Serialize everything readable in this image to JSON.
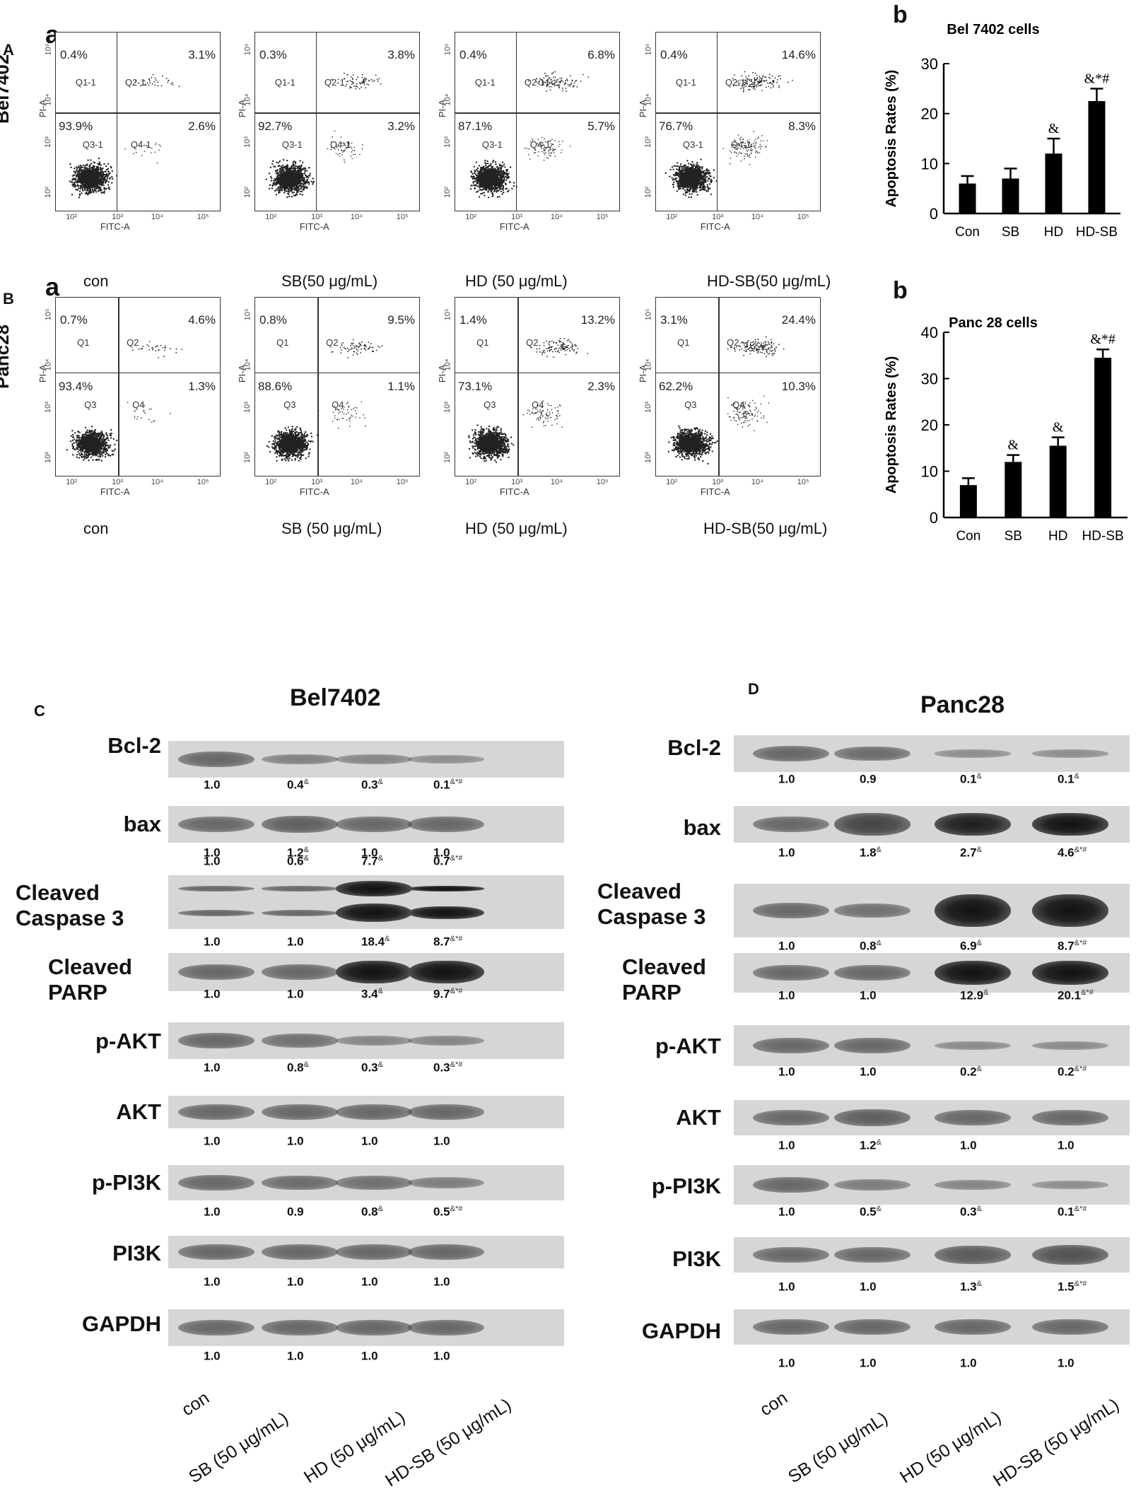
{
  "panel_letters": {
    "A": "A",
    "B": "B",
    "C": "C",
    "D": "D",
    "sub_a": "a",
    "sub_b": "b"
  },
  "flow": {
    "rows": [
      {
        "row_label": "Bel7402",
        "plots": [
          {
            "condition": "con",
            "q1": "0.4%",
            "q2": "3.1%",
            "q3": "93.9%",
            "q4": "2.6%",
            "gate_names": [
              "Q1-1",
              "Q2-1",
              "Q3-1",
              "Q4-1"
            ]
          },
          {
            "condition": "SB(50 μg/mL)",
            "q1": "0.3%",
            "q2": "3.8%",
            "q3": "92.7%",
            "q4": "3.2%",
            "gate_names": [
              "Q1-1",
              "Q2-1",
              "Q3-1",
              "Q4-1"
            ]
          },
          {
            "condition": "HD (50 μg/mL)",
            "q1": "0.4%",
            "q2": "6.8%",
            "q3": "87.1%",
            "q4": "5.7%",
            "gate_names": [
              "Q1-1",
              "Q2-1",
              "Q3-1",
              "Q4-1"
            ]
          },
          {
            "condition": "HD-SB(50 μg/mL)",
            "q1": "0.4%",
            "q2": "14.6%",
            "q3": "76.7%",
            "q4": "8.3%",
            "gate_names": [
              "Q1-1",
              "Q2-1",
              "Q3-1",
              "Q4-1"
            ]
          }
        ]
      },
      {
        "row_label": "Panc28",
        "plots": [
          {
            "condition": "con",
            "q1": "0.7%",
            "q2": "4.6%",
            "q3": "93.4%",
            "q4": "1.3%",
            "gate_names": [
              "Q1",
              "Q2",
              "Q3",
              "Q4"
            ]
          },
          {
            "condition": "SB (50 μg/mL)",
            "q1": "0.8%",
            "q2": "9.5%",
            "q3": "88.6%",
            "q4": "1.1%",
            "gate_names": [
              "Q1",
              "Q2",
              "Q3",
              "Q4"
            ]
          },
          {
            "condition": "HD (50 μg/mL)",
            "q1": "1.4%",
            "q2": "13.2%",
            "q3": "73.1%",
            "q4": "2.3%",
            "gate_names": [
              "Q1",
              "Q2",
              "Q3",
              "Q4"
            ]
          },
          {
            "condition": "HD-SB(50 μg/mL)",
            "q1": "3.1%",
            "q2": "24.4%",
            "q3": "62.2%",
            "q4": "10.3%",
            "gate_names": [
              "Q1",
              "Q2",
              "Q3",
              "Q4"
            ]
          }
        ]
      }
    ],
    "x_axis_label": "FITC-A",
    "y_axis_label": "PI-A",
    "ticks": [
      "10²",
      "10³",
      "10⁴",
      "10⁵"
    ]
  },
  "chart_data": [
    {
      "type": "bar",
      "title": "Bel 7402 cells",
      "ylabel": "Apoptosis Rates (%)",
      "categories": [
        "Con",
        "SB",
        "HD",
        "HD-SB"
      ],
      "values": [
        6,
        7,
        12,
        22.5
      ],
      "errors": [
        1.5,
        2,
        3,
        2.5
      ],
      "annotations": [
        "",
        "",
        "&",
        "&*#"
      ],
      "ylim": [
        0,
        30
      ],
      "yticks": [
        "0",
        "10",
        "20",
        "30"
      ]
    },
    {
      "type": "bar",
      "title": "Panc 28 cells",
      "ylabel": "Apoptosis Rates (%)",
      "categories": [
        "Con",
        "SB",
        "HD",
        "HD-SB"
      ],
      "values": [
        7,
        12,
        15.5,
        34.5
      ],
      "errors": [
        1.5,
        1.5,
        1.8,
        1.8
      ],
      "annotations": [
        "",
        "&",
        "&",
        "&*#"
      ],
      "ylim": [
        0,
        40
      ],
      "yticks": [
        "0",
        "10",
        "20",
        "30",
        "40"
      ]
    }
  ],
  "western": {
    "left": {
      "title": "Bel7402",
      "proteins": [
        {
          "name": "Bcl-2",
          "values": [
            "1.0",
            "0.4",
            "0.3",
            "0.1"
          ],
          "sig": [
            "",
            "&",
            "&",
            "&*#"
          ]
        },
        {
          "name": "bax",
          "values": [
            "1.0",
            "1.2",
            "1.0",
            "1.0"
          ],
          "sig": [
            "",
            "&",
            "",
            ""
          ]
        },
        {
          "name": "Cleaved Caspase 3",
          "upper_values": [
            "1.0",
            "0.6",
            "7.7",
            "0.7"
          ],
          "upper_sig": [
            "",
            "&",
            "&",
            "&*#"
          ],
          "values": [
            "1.0",
            "1.0",
            "18.4",
            "8.7"
          ],
          "sig": [
            "",
            "",
            "&",
            "&*#"
          ]
        },
        {
          "name": "Cleaved PARP",
          "values": [
            "1.0",
            "1.0",
            "3.4",
            "9.7"
          ],
          "sig": [
            "",
            "",
            "&",
            "&*#"
          ]
        },
        {
          "name": "p-AKT",
          "values": [
            "1.0",
            "0.8",
            "0.3",
            "0.3"
          ],
          "sig": [
            "",
            "&",
            "&",
            "&*#"
          ]
        },
        {
          "name": "AKT",
          "values": [
            "1.0",
            "1.0",
            "1.0",
            "1.0"
          ],
          "sig": [
            "",
            "",
            "",
            ""
          ]
        },
        {
          "name": "p-PI3K",
          "values": [
            "1.0",
            "0.9",
            "0.8",
            "0.5"
          ],
          "sig": [
            "",
            "",
            "&",
            "&*#"
          ]
        },
        {
          "name": "PI3K",
          "values": [
            "1.0",
            "1.0",
            "1.0",
            "1.0"
          ],
          "sig": [
            "",
            "",
            "",
            ""
          ]
        },
        {
          "name": "GAPDH",
          "values": [
            "1.0",
            "1.0",
            "1.0",
            "1.0"
          ],
          "sig": [
            "",
            "",
            "",
            ""
          ]
        }
      ],
      "conditions": [
        "con",
        "SB (50 μg/mL)",
        "HD (50 μg/mL)",
        "HD-SB (50 μg/mL)"
      ]
    },
    "right": {
      "title": "Panc28",
      "proteins": [
        {
          "name": "Bcl-2",
          "values": [
            "1.0",
            "0.9",
            "0.1",
            "0.1"
          ],
          "sig": [
            "",
            "",
            "&",
            "&"
          ]
        },
        {
          "name": "bax",
          "values": [
            "1.0",
            "1.8",
            "2.7",
            "4.6"
          ],
          "sig": [
            "",
            "&",
            "&",
            "&*#"
          ]
        },
        {
          "name": "Cleaved Caspase 3",
          "values": [
            "1.0",
            "0.8",
            "6.9",
            "8.7"
          ],
          "sig": [
            "",
            "&",
            "&",
            "&*#"
          ]
        },
        {
          "name": "Cleaved PARP",
          "values": [
            "1.0",
            "1.0",
            "12.9",
            "20.1"
          ],
          "sig": [
            "",
            "",
            "&",
            "&*#"
          ]
        },
        {
          "name": "p-AKT",
          "values": [
            "1.0",
            "1.0",
            "0.2",
            "0.2"
          ],
          "sig": [
            "",
            "",
            "&",
            "&*#"
          ]
        },
        {
          "name": "AKT",
          "values": [
            "1.0",
            "1.2",
            "1.0",
            "1.0"
          ],
          "sig": [
            "",
            "&",
            "",
            ""
          ]
        },
        {
          "name": "p-PI3K",
          "values": [
            "1.0",
            "0.5",
            "0.3",
            "0.1"
          ],
          "sig": [
            "",
            "&",
            "&",
            "&*#"
          ]
        },
        {
          "name": "PI3K",
          "values": [
            "1.0",
            "1.0",
            "1.3",
            "1.5"
          ],
          "sig": [
            "",
            "",
            "&",
            "&*#"
          ]
        },
        {
          "name": "GAPDH",
          "values": [
            "1.0",
            "1.0",
            "1.0",
            "1.0"
          ],
          "sig": [
            "",
            "",
            "",
            ""
          ]
        }
      ],
      "conditions": [
        "con",
        "SB (50 μg/mL)",
        "HD (50 μg/mL)",
        "HD-SB (50 μg/mL)"
      ]
    }
  }
}
